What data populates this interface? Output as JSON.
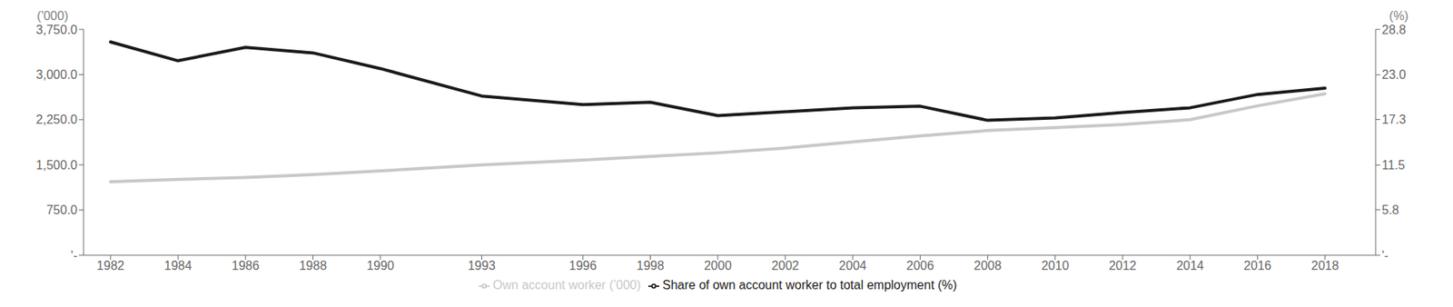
{
  "chart_data": {
    "type": "line",
    "x": [
      1982,
      1984,
      1986,
      1988,
      1990,
      1993,
      1996,
      1998,
      2000,
      2002,
      2004,
      2006,
      2008,
      2010,
      2012,
      2014,
      2016,
      2018
    ],
    "xlim": [
      1981.2,
      2019.5
    ],
    "xticks": [
      1982,
      1984,
      1986,
      1988,
      1990,
      1993,
      1996,
      1998,
      2000,
      2002,
      2004,
      2006,
      2008,
      2010,
      2012,
      2014,
      2016,
      2018
    ],
    "y_label": "('000)",
    "y2_label": "(%)",
    "ylim": [
      0,
      3750.0
    ],
    "yticks": [
      {
        "value": 0,
        "label": "'-"
      },
      {
        "value": 750,
        "label": "750.0"
      },
      {
        "value": 1500,
        "label": "1,500.0"
      },
      {
        "value": 2250,
        "label": "2,250.0"
      },
      {
        "value": 3000,
        "label": "3,000.0"
      },
      {
        "value": 3750,
        "label": "3,750.0"
      }
    ],
    "y2lim": [
      0,
      28.8
    ],
    "y2ticks": [
      {
        "value": 0,
        "label": "'-"
      },
      5.8,
      11.5,
      17.3,
      {
        "value": 23,
        "label": "23.0"
      },
      28.8
    ],
    "grid": false,
    "legend": "bottom",
    "series": [
      {
        "name": "Own account worker (’000)",
        "color": "#c8c8c8",
        "values": [
          1220,
          1260,
          1290,
          1340,
          1400,
          1500,
          1580,
          1640,
          1700,
          1780,
          1880,
          1980,
          2070,
          2120,
          2170,
          2250,
          2480,
          2680
        ]
      },
      {
        "name": "Share of own account worker to total employment (%)",
        "color": "#1a1a1a",
        "axis": "y2",
        "values": [
          27.2,
          24.8,
          26.5,
          25.8,
          23.8,
          20.3,
          19.2,
          19.5,
          17.8,
          18.3,
          18.8,
          19.0,
          17.2,
          17.5,
          18.2,
          18.8,
          20.5,
          21.3
        ]
      }
    ]
  }
}
